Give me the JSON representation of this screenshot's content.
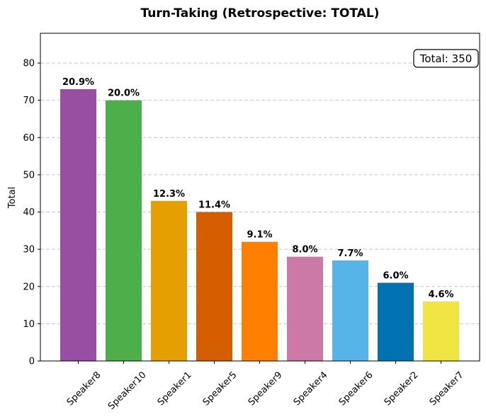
{
  "chart_data": {
    "type": "bar",
    "title": "Turn-Taking (Retrospective: TOTAL)",
    "xlabel": "",
    "ylabel": "Total",
    "ylim": [
      0,
      88
    ],
    "yticks": [
      0,
      10,
      20,
      30,
      40,
      50,
      60,
      70,
      80
    ],
    "grid": "y-dashed",
    "categories": [
      "Speaker8",
      "Speaker10",
      "Speaker1",
      "Speaker5",
      "Speaker9",
      "Speaker4",
      "Speaker6",
      "Speaker2",
      "Speaker7"
    ],
    "values": [
      73,
      70,
      43,
      40,
      32,
      28,
      27,
      21,
      16
    ],
    "labels": [
      "20.9%",
      "20.0%",
      "12.3%",
      "11.4%",
      "9.1%",
      "8.0%",
      "7.7%",
      "6.0%",
      "4.6%"
    ],
    "colors": [
      "#984ea3",
      "#4daf4a",
      "#e69f00",
      "#d55e00",
      "#ff7f00",
      "#cc79a7",
      "#56b4e9",
      "#0072b2",
      "#f0e442"
    ],
    "annotation": "Total: 350",
    "annotation_placement": "top-right"
  }
}
